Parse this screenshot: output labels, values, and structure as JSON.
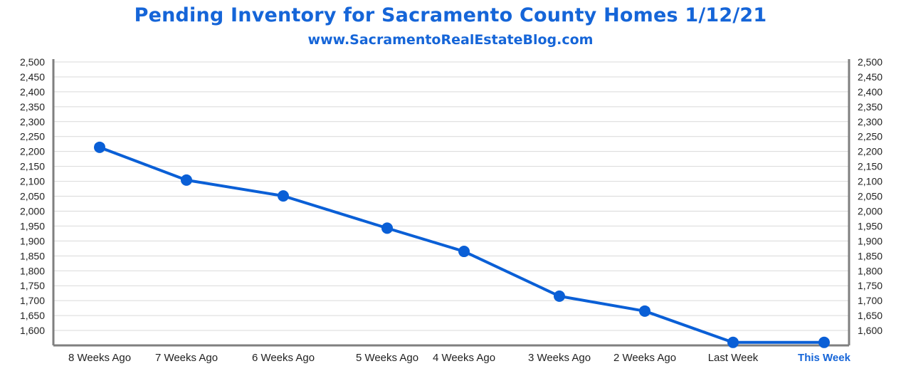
{
  "chart_data": {
    "type": "line",
    "title": "Pending Inventory for Sacramento County Homes 1/12/21",
    "subtitle": "www.SacramentoRealEstateBlog.com",
    "categories": [
      "8 Weeks Ago",
      "7 Weeks Ago",
      "6 Weeks Ago",
      "5 Weeks Ago",
      "4 Weeks Ago",
      "3 Weeks Ago",
      "2 Weeks Ago",
      "Last Week",
      "This Week"
    ],
    "values": [
      2214,
      2104,
      2051,
      1943,
      1865,
      1715,
      1665,
      1560,
      1560
    ],
    "ylim": [
      1550,
      2500
    ],
    "yticks": [
      1600,
      1650,
      1700,
      1750,
      1800,
      1850,
      1900,
      1950,
      2000,
      2050,
      2100,
      2150,
      2200,
      2250,
      2300,
      2350,
      2400,
      2450,
      2500
    ],
    "ytick_labels": [
      "1,600",
      "1,650",
      "1,700",
      "1,750",
      "1,800",
      "1,850",
      "1,900",
      "1,950",
      "2,000",
      "2,050",
      "2,100",
      "2,150",
      "2,200",
      "2,250",
      "2,300",
      "2,350",
      "2,400",
      "2,450",
      "2,500"
    ],
    "highlight_category": "This Week",
    "grid": true,
    "secondary_y_axis": true,
    "colors": {
      "line": "#0a5fd6",
      "text": "#1565d8",
      "grid": "#d9d9d9",
      "axis": "#7f7f7f",
      "highlight": "#1565d8"
    }
  }
}
